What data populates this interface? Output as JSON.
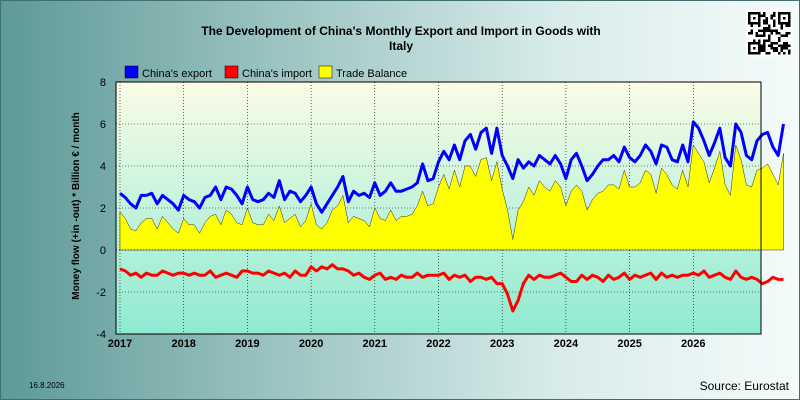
{
  "chart_data": {
    "type": "line",
    "title_line1": "The Development of China's Monthly Export and Import in Goods with",
    "title_line2": "Italy",
    "ylabel": "Money flow (+in -out) * Billion € / month",
    "ylim": [
      -4,
      8
    ],
    "yticks": [
      "8",
      "6",
      "4",
      "2",
      "0",
      "-2",
      "-4"
    ],
    "ytick_values": [
      8,
      6,
      4,
      2,
      0,
      -2,
      -4
    ],
    "xtick_labels": [
      "2017",
      "2018",
      "2019",
      "2020",
      "2021",
      "2022",
      "2023",
      "2024",
      "2025",
      "2026"
    ],
    "start": "2017-01",
    "grid": true,
    "legend_placement": "top",
    "series": [
      {
        "name": "China's export",
        "color": "#0000ff",
        "values": [
          2.7,
          2.5,
          2.2,
          2.0,
          2.6,
          2.6,
          2.7,
          2.2,
          2.6,
          2.4,
          2.2,
          1.9,
          2.6,
          2.4,
          2.3,
          2.0,
          2.5,
          2.6,
          3.0,
          2.4,
          3.0,
          2.9,
          2.6,
          2.2,
          3.0,
          2.4,
          2.3,
          2.4,
          2.7,
          2.5,
          3.3,
          2.4,
          2.8,
          2.7,
          2.3,
          2.6,
          3.0,
          2.2,
          1.8,
          2.2,
          2.6,
          3.0,
          3.5,
          2.3,
          2.8,
          2.6,
          2.7,
          2.5,
          3.2,
          2.6,
          2.8,
          3.2,
          2.8,
          2.8,
          2.9,
          3.0,
          3.2,
          4.1,
          3.3,
          3.4,
          4.2,
          4.7,
          4.3,
          5.0,
          4.3,
          5.2,
          5.5,
          4.8,
          5.6,
          5.8,
          4.6,
          5.8,
          4.5,
          4.0,
          3.4,
          4.3,
          3.9,
          4.2,
          4.0,
          4.5,
          4.3,
          4.1,
          4.5,
          4.1,
          3.4,
          4.3,
          4.6,
          4.0,
          3.3,
          3.6,
          4.0,
          4.3,
          4.3,
          4.5,
          4.2,
          4.9,
          4.4,
          4.2,
          4.5,
          5.0,
          4.7,
          4.1,
          5.0,
          4.9,
          4.3,
          4.2,
          5.0,
          4.2,
          6.1,
          5.8,
          5.2,
          4.5,
          5.1,
          5.8,
          4.4,
          4.0,
          6.0,
          5.6,
          4.5,
          4.3,
          5.2,
          5.5,
          5.6,
          4.9,
          4.5,
          6.0
        ]
      },
      {
        "name": "China's import",
        "color": "#ff0000",
        "values": [
          -0.9,
          -1.0,
          -1.2,
          -1.1,
          -1.3,
          -1.1,
          -1.2,
          -1.2,
          -1.0,
          -1.1,
          -1.2,
          -1.1,
          -1.1,
          -1.2,
          -1.1,
          -1.2,
          -1.2,
          -1.0,
          -1.3,
          -1.2,
          -1.1,
          -1.2,
          -1.3,
          -1.0,
          -1.0,
          -1.1,
          -1.1,
          -1.2,
          -1.0,
          -1.1,
          -1.2,
          -1.1,
          -1.3,
          -1.0,
          -1.2,
          -1.2,
          -0.8,
          -1.0,
          -0.8,
          -0.9,
          -0.7,
          -0.9,
          -0.9,
          -1.0,
          -1.2,
          -1.1,
          -1.3,
          -1.4,
          -1.2,
          -1.1,
          -1.4,
          -1.3,
          -1.4,
          -1.2,
          -1.3,
          -1.3,
          -1.1,
          -1.3,
          -1.2,
          -1.2,
          -1.2,
          -1.1,
          -1.4,
          -1.2,
          -1.3,
          -1.2,
          -1.5,
          -1.3,
          -1.3,
          -1.4,
          -1.3,
          -1.6,
          -1.6,
          -2.1,
          -2.9,
          -2.4,
          -1.6,
          -1.2,
          -1.4,
          -1.2,
          -1.3,
          -1.3,
          -1.2,
          -1.1,
          -1.3,
          -1.5,
          -1.5,
          -1.2,
          -1.4,
          -1.2,
          -1.3,
          -1.5,
          -1.2,
          -1.4,
          -1.3,
          -1.1,
          -1.4,
          -1.2,
          -1.3,
          -1.2,
          -1.1,
          -1.4,
          -1.1,
          -1.3,
          -1.2,
          -1.3,
          -1.2,
          -1.2,
          -1.1,
          -1.2,
          -1.0,
          -1.3,
          -1.2,
          -1.1,
          -1.3,
          -1.4,
          -1.0,
          -1.3,
          -1.4,
          -1.3,
          -1.4,
          -1.6,
          -1.5,
          -1.3,
          -1.4,
          -1.4
        ]
      },
      {
        "name": "Trade Balance",
        "color": "#ffff00",
        "type": "area"
      }
    ]
  },
  "footer": {
    "date": "16.8.2026",
    "source": "Source: Eurostat"
  }
}
